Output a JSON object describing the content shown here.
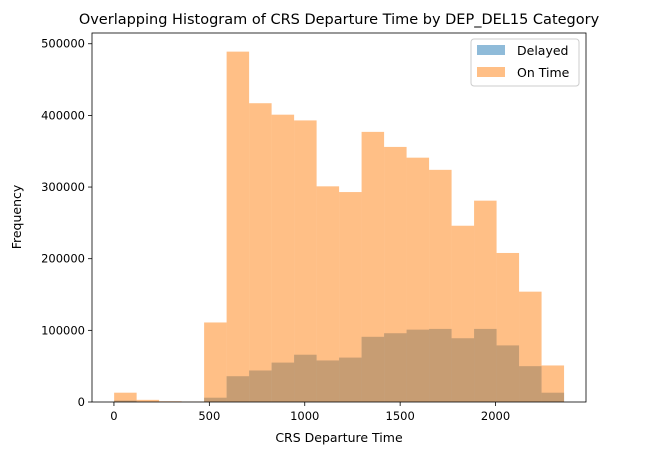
{
  "chart_data": {
    "type": "histogram",
    "title": "Overlapping Histogram of CRS Departure Time by DEP_DEL15 Category",
    "xlabel": "CRS Departure Time",
    "ylabel": "Frequency",
    "xlim": [
      -115,
      2474
    ],
    "ylim": [
      0,
      515000
    ],
    "xticks": [
      0,
      500,
      1000,
      1500,
      2000
    ],
    "yticks": [
      0,
      100000,
      200000,
      300000,
      400000,
      500000
    ],
    "xtick_labels": [
      "0",
      "500",
      "1000",
      "1500",
      "2000"
    ],
    "ytick_labels": [
      "0",
      "100000",
      "200000",
      "300000",
      "400000",
      "500000"
    ],
    "bin_edges": [
      1,
      118.9,
      236.8,
      354.7,
      472.6,
      590.5,
      708.4,
      826.3,
      944.2,
      1062.1,
      1180,
      1297.9,
      1415.8,
      1533.7,
      1651.6,
      1769.5,
      1887.4,
      2005.3,
      2123.2,
      2241.1,
      2359
    ],
    "series": [
      {
        "name": "Delayed",
        "color": "#1f77b4",
        "alpha": 0.5,
        "values": [
          2000,
          400,
          200,
          100,
          6000,
          36000,
          44000,
          55000,
          66000,
          58000,
          62000,
          91000,
          96000,
          101000,
          102000,
          89000,
          102000,
          79000,
          50000,
          13000
        ]
      },
      {
        "name": "On Time",
        "color": "#ff7f0e",
        "alpha": 0.5,
        "values": [
          13000,
          3000,
          1000,
          500,
          111000,
          489000,
          417000,
          401000,
          393000,
          301000,
          293000,
          377000,
          356000,
          341000,
          324000,
          246000,
          281000,
          208000,
          154000,
          51000
        ]
      }
    ],
    "legend_position": "top-right",
    "grid": false
  }
}
